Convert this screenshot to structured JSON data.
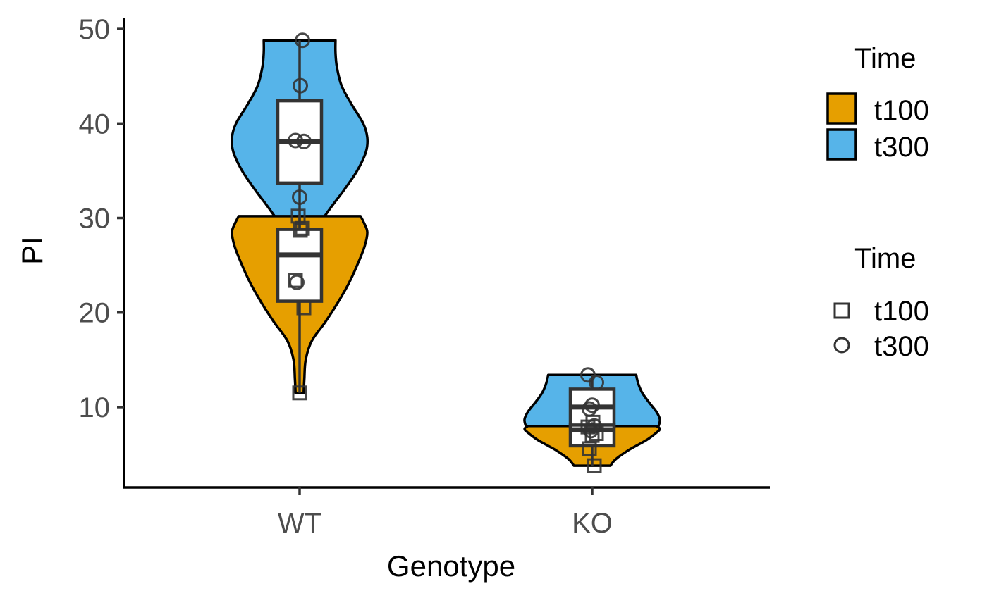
{
  "chart_data": {
    "type": "violin",
    "xlabel": "Genotype",
    "ylabel": "PI",
    "categories": [
      "WT",
      "KO"
    ],
    "ylim": [
      1.5,
      51.2
    ],
    "yticks": [
      10,
      20,
      30,
      40,
      50
    ],
    "grid": false,
    "legend_position": "right",
    "colors": {
      "t100": "#E69F00",
      "t300": "#56B4E9"
    },
    "fill_legend": {
      "title": "Time",
      "entries": [
        "t100",
        "t300"
      ]
    },
    "shape_legend": {
      "title": "Time",
      "entries": [
        "t100",
        "t300"
      ]
    },
    "groups": [
      {
        "genotype": "WT",
        "time": "t100",
        "points": [
          30.2,
          28.9,
          28.7,
          23.4,
          20.5,
          11.5
        ],
        "box": {
          "q1": 21.2,
          "median": 26.1,
          "q3": 28.8,
          "whisker_low": 11.5,
          "whisker_high": 30.2
        },
        "density": [
          [
            11.5,
            0.06
          ],
          [
            13.0,
            0.07
          ],
          [
            15.0,
            0.09
          ],
          [
            17.0,
            0.18
          ],
          [
            19.0,
            0.38
          ],
          [
            21.0,
            0.56
          ],
          [
            23.0,
            0.72
          ],
          [
            25.0,
            0.85
          ],
          [
            27.0,
            0.96
          ],
          [
            28.5,
            1.0
          ],
          [
            29.5,
            0.95
          ],
          [
            30.2,
            0.9
          ]
        ]
      },
      {
        "genotype": "WT",
        "time": "t300",
        "points": [
          48.8,
          44.0,
          38.2,
          38.1,
          32.2,
          23.2
        ],
        "box": {
          "q1": 33.7,
          "median": 38.1,
          "q3": 42.4,
          "whisker_low": 23.2,
          "whisker_high": 48.8
        },
        "density": [
          [
            23.2,
            0.02
          ],
          [
            25.0,
            0.05
          ],
          [
            27.0,
            0.12
          ],
          [
            29.0,
            0.26
          ],
          [
            31.0,
            0.45
          ],
          [
            33.0,
            0.66
          ],
          [
            35.0,
            0.85
          ],
          [
            37.0,
            0.98
          ],
          [
            38.5,
            1.0
          ],
          [
            40.0,
            0.94
          ],
          [
            42.0,
            0.77
          ],
          [
            44.0,
            0.62
          ],
          [
            46.0,
            0.55
          ],
          [
            47.5,
            0.53
          ],
          [
            48.8,
            0.53
          ]
        ]
      },
      {
        "genotype": "KO",
        "time": "t100",
        "points": [
          8.4,
          7.9,
          7.2,
          7.0,
          5.6,
          3.8
        ],
        "box": {
          "q1": 5.9,
          "median": 7.6,
          "q3": 8.1,
          "whisker_low": 3.8,
          "whisker_high": 8.4
        },
        "density": [
          [
            3.8,
            0.27
          ],
          [
            4.5,
            0.35
          ],
          [
            5.5,
            0.55
          ],
          [
            6.5,
            0.8
          ],
          [
            7.3,
            0.95
          ],
          [
            7.7,
            1.0
          ],
          [
            8.0,
            0.95
          ]
        ]
      },
      {
        "genotype": "KO",
        "time": "t300",
        "points": [
          13.4,
          12.6,
          10.2,
          9.8,
          8.0,
          7.5
        ],
        "box": {
          "q1": 7.9,
          "median": 10.0,
          "q3": 11.9,
          "whisker_low": 7.5,
          "whisker_high": 13.4
        },
        "density": [
          [
            7.5,
            0.94
          ],
          [
            8.0,
            0.98
          ],
          [
            8.7,
            1.0
          ],
          [
            9.5,
            0.95
          ],
          [
            10.5,
            0.84
          ],
          [
            11.5,
            0.74
          ],
          [
            12.5,
            0.68
          ],
          [
            13.4,
            0.65
          ]
        ]
      }
    ]
  }
}
